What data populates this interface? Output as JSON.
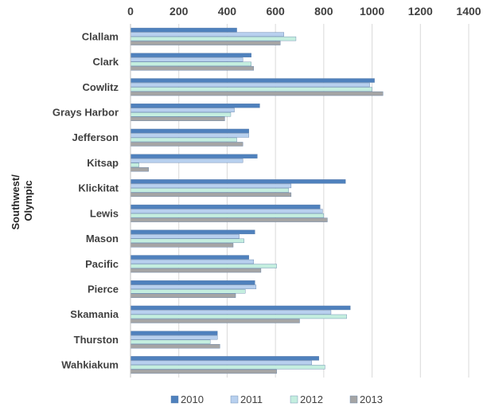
{
  "chart_data": {
    "type": "bar",
    "orientation": "horizontal",
    "group_label": "Southwest/ Olympic",
    "group_label_lines": [
      "Southwest/",
      "Olympic"
    ],
    "categories": [
      "Clallam",
      "Clark",
      "Cowlitz",
      "Grays Harbor",
      "Jefferson",
      "Kitsap",
      "Klickitat",
      "Lewis",
      "Mason",
      "Pacific",
      "Pierce",
      "Skamania",
      "Thurston",
      "Wahkiakum"
    ],
    "series": [
      {
        "name": "2010",
        "color": "#4f81bd",
        "values": [
          440,
          500,
          1010,
          535,
          490,
          525,
          890,
          785,
          515,
          490,
          515,
          910,
          360,
          780
        ]
      },
      {
        "name": "2011",
        "color": "#b8d0ee",
        "values": [
          635,
          465,
          990,
          430,
          490,
          465,
          665,
          795,
          450,
          510,
          520,
          830,
          360,
          750
        ]
      },
      {
        "name": "2012",
        "color": "#c4eedf",
        "values": [
          685,
          500,
          1000,
          415,
          440,
          35,
          655,
          800,
          470,
          605,
          475,
          895,
          330,
          805
        ]
      },
      {
        "name": "2013",
        "color": "#a5a5a5",
        "values": [
          620,
          510,
          1045,
          390,
          465,
          75,
          665,
          815,
          425,
          540,
          435,
          700,
          370,
          605
        ]
      }
    ],
    "xlim": [
      0,
      1400
    ],
    "xticks": [
      0,
      200,
      400,
      600,
      800,
      1000,
      1200,
      1400
    ],
    "axis_position": "top",
    "grid": true,
    "legend": "bottom"
  }
}
